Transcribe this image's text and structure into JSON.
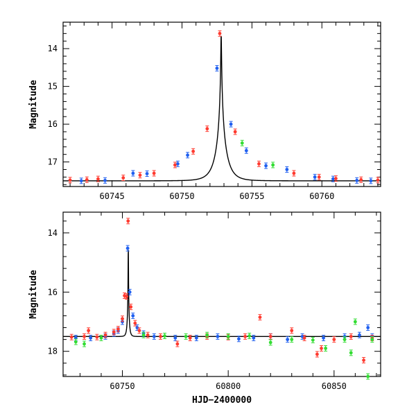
{
  "colors": {
    "blue": "#2060f0",
    "red": "#ff3b30",
    "green": "#33dd33",
    "curve": "#000000"
  },
  "chart_data": [
    {
      "type": "scatter",
      "title": "",
      "xlabel": "",
      "ylabel": "Magnitude",
      "xlim": [
        60741.5,
        60764.2
      ],
      "ylim": [
        17.65,
        13.3
      ],
      "y_inverted": true,
      "xticks": [
        60745,
        60750,
        60755,
        60760
      ],
      "yticks": [
        14,
        15,
        16,
        17
      ],
      "model_curve": {
        "t0": 60752.8,
        "peak_mag": 13.6,
        "base_mag": 17.5,
        "tE": 0.75,
        "u0": 0.025
      },
      "series": [
        {
          "color": "blue",
          "points": [
            [
              60742.8,
              17.5
            ],
            [
              60744.5,
              17.49
            ],
            [
              60746.5,
              17.3
            ],
            [
              60747.5,
              17.31
            ],
            [
              60749.7,
              17.05
            ],
            [
              60750.4,
              16.82
            ],
            [
              60752.5,
              14.52
            ],
            [
              60753.5,
              16.0
            ],
            [
              60754.6,
              16.7
            ],
            [
              60756.0,
              17.1
            ],
            [
              60757.5,
              17.2
            ],
            [
              60759.5,
              17.4
            ],
            [
              60760.8,
              17.45
            ],
            [
              60762.5,
              17.49
            ],
            [
              60763.5,
              17.5
            ]
          ]
        },
        {
          "color": "red",
          "points": [
            [
              60742.0,
              17.48
            ],
            [
              60743.2,
              17.47
            ],
            [
              60744.0,
              17.45
            ],
            [
              60745.8,
              17.42
            ],
            [
              60747.0,
              17.35
            ],
            [
              60748.0,
              17.3
            ],
            [
              60749.5,
              17.08
            ],
            [
              60750.8,
              16.72
            ],
            [
              60751.8,
              16.12
            ],
            [
              60752.7,
              13.6
            ],
            [
              60753.8,
              16.2
            ],
            [
              60755.5,
              17.05
            ],
            [
              60758.0,
              17.3
            ],
            [
              60759.8,
              17.4
            ],
            [
              60761.0,
              17.44
            ],
            [
              60762.8,
              17.47
            ],
            [
              60764.0,
              17.48
            ]
          ]
        },
        {
          "color": "green",
          "points": [
            [
              60754.3,
              16.5
            ],
            [
              60756.5,
              17.08
            ]
          ]
        }
      ]
    },
    {
      "type": "scatter",
      "title": "",
      "xlabel": "HJD−2400000",
      "ylabel": "Magnitude",
      "xlim": [
        60722,
        60872
      ],
      "ylim": [
        18.85,
        13.3
      ],
      "y_inverted": true,
      "xticks": [
        60750,
        60800,
        60850
      ],
      "yticks": [
        14,
        16,
        18
      ],
      "model_curve": {
        "t0": 60752.8,
        "peak_mag": 13.6,
        "base_mag": 17.5,
        "tE": 0.75,
        "u0": 0.025
      },
      "series": [
        {
          "color": "blue",
          "points": [
            [
              60728,
              17.55
            ],
            [
              60735,
              17.55
            ],
            [
              60742,
              17.5
            ],
            [
              60746,
              17.4
            ],
            [
              60748,
              17.3
            ],
            [
              60750,
              17.0
            ],
            [
              60752.5,
              14.52
            ],
            [
              60753.5,
              16.0
            ],
            [
              60755,
              16.8
            ],
            [
              60757,
              17.2
            ],
            [
              60760,
              17.4
            ],
            [
              60765,
              17.5
            ],
            [
              60775,
              17.55
            ],
            [
              60785,
              17.55
            ],
            [
              60795,
              17.5
            ],
            [
              60805,
              17.58
            ],
            [
              60812,
              17.55
            ],
            [
              60820,
              17.5
            ],
            [
              60828,
              17.6
            ],
            [
              60835,
              17.5
            ],
            [
              60845,
              17.55
            ],
            [
              60855,
              17.5
            ],
            [
              60862,
              17.45
            ],
            [
              60866,
              17.2
            ],
            [
              60868,
              17.5
            ]
          ]
        },
        {
          "color": "red",
          "points": [
            [
              60726,
              17.52
            ],
            [
              60732,
              17.5
            ],
            [
              60734,
              17.3
            ],
            [
              60738,
              17.52
            ],
            [
              60742,
              17.45
            ],
            [
              60746,
              17.35
            ],
            [
              60748,
              17.25
            ],
            [
              60750,
              16.9
            ],
            [
              60751,
              16.12
            ],
            [
              60752,
              16.15
            ],
            [
              60752.7,
              13.6
            ],
            [
              60754,
              16.5
            ],
            [
              60756,
              17.05
            ],
            [
              60758,
              17.3
            ],
            [
              60762,
              17.45
            ],
            [
              60768,
              17.5
            ],
            [
              60776,
              17.75
            ],
            [
              60782,
              17.55
            ],
            [
              60790,
              17.5
            ],
            [
              60800,
              17.52
            ],
            [
              60808,
              17.5
            ],
            [
              60815,
              16.85
            ],
            [
              60820,
              17.5
            ],
            [
              60830,
              17.3
            ],
            [
              60836,
              17.55
            ],
            [
              60842,
              18.1
            ],
            [
              60844,
              17.9
            ],
            [
              60850,
              17.6
            ],
            [
              60858,
              17.5
            ],
            [
              60864,
              18.3
            ],
            [
              60868,
              17.55
            ]
          ]
        },
        {
          "color": "green",
          "points": [
            [
              60728,
              17.68
            ],
            [
              60732,
              17.75
            ],
            [
              60740,
              17.55
            ],
            [
              60760,
              17.45
            ],
            [
              60770,
              17.48
            ],
            [
              60780,
              17.5
            ],
            [
              60790,
              17.45
            ],
            [
              60800,
              17.5
            ],
            [
              60810,
              17.48
            ],
            [
              60820,
              17.7
            ],
            [
              60830,
              17.6
            ],
            [
              60840,
              17.62
            ],
            [
              60846,
              17.9
            ],
            [
              60855,
              17.6
            ],
            [
              60858,
              18.05
            ],
            [
              60860,
              17.0
            ],
            [
              60866,
              18.85
            ],
            [
              60868,
              17.6
            ]
          ]
        }
      ]
    }
  ]
}
